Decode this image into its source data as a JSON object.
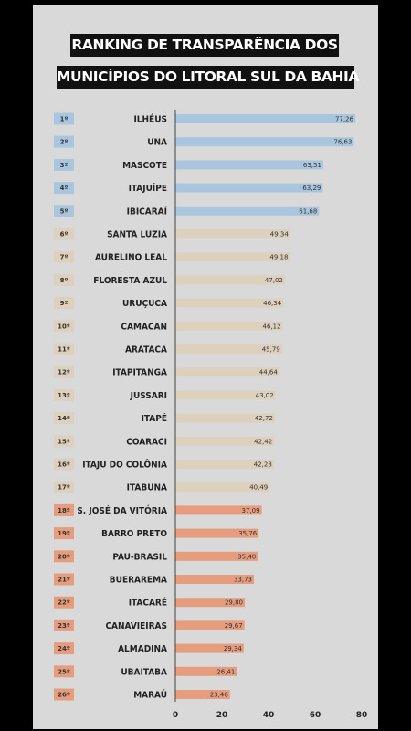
{
  "chart_data": {
    "type": "bar",
    "orientation": "horizontal",
    "title": [
      "RANKING DE TRANSPARÊNCIA DOS",
      "MUNICÍPIOS DO LITORAL SUL DA BAHIA"
    ],
    "xlim": [
      0,
      80
    ],
    "xticks": [
      "0",
      "20",
      "40",
      "60",
      "80"
    ],
    "grid": false,
    "colors": {
      "top": "#a9c6de",
      "middle": "#ddd0bd",
      "bottom": "#e59d7e"
    },
    "rows": [
      {
        "rank": "1º",
        "name": "ILHÉUS",
        "value": 77.26,
        "label": "77,26",
        "tier": "top"
      },
      {
        "rank": "2º",
        "name": "UNA",
        "value": 76.63,
        "label": "76,63",
        "tier": "top"
      },
      {
        "rank": "3º",
        "name": "MASCOTE",
        "value": 63.51,
        "label": "63,51",
        "tier": "top"
      },
      {
        "rank": "4º",
        "name": "ITAJUÍPE",
        "value": 63.29,
        "label": "63,29",
        "tier": "top"
      },
      {
        "rank": "5º",
        "name": "IBICARAÍ",
        "value": 61.68,
        "label": "61,68",
        "tier": "top"
      },
      {
        "rank": "6º",
        "name": "SANTA LUZIA",
        "value": 49.34,
        "label": "49,34",
        "tier": "middle"
      },
      {
        "rank": "7º",
        "name": "AURELINO LEAL",
        "value": 49.18,
        "label": "49,18",
        "tier": "middle"
      },
      {
        "rank": "8º",
        "name": "FLORESTA AZUL",
        "value": 47.02,
        "label": "47,02",
        "tier": "middle"
      },
      {
        "rank": "9º",
        "name": "URUÇUCA",
        "value": 46.34,
        "label": "46,34",
        "tier": "middle"
      },
      {
        "rank": "10º",
        "name": "CAMACAN",
        "value": 46.12,
        "label": "46,12",
        "tier": "middle"
      },
      {
        "rank": "11º",
        "name": "ARATACA",
        "value": 45.79,
        "label": "45,79",
        "tier": "middle"
      },
      {
        "rank": "12º",
        "name": "ITAPITANGA",
        "value": 44.64,
        "label": "44,64",
        "tier": "middle"
      },
      {
        "rank": "13º",
        "name": "JUSSARI",
        "value": 43.02,
        "label": "43,02",
        "tier": "middle"
      },
      {
        "rank": "14º",
        "name": "ITAPÉ",
        "value": 42.72,
        "label": "42,72",
        "tier": "middle"
      },
      {
        "rank": "15º",
        "name": "COARACI",
        "value": 42.42,
        "label": "42,42",
        "tier": "middle"
      },
      {
        "rank": "16º",
        "name": "ITAJU DO COLÔNIA",
        "value": 42.28,
        "label": "42,28",
        "tier": "middle"
      },
      {
        "rank": "17º",
        "name": "ITABUNA",
        "value": 40.49,
        "label": "40,49",
        "tier": "middle"
      },
      {
        "rank": "18º",
        "name": "S. JOSÉ DA VITÓRIA",
        "value": 37.09,
        "label": "37,09",
        "tier": "bottom"
      },
      {
        "rank": "19º",
        "name": "BARRO PRETO",
        "value": 35.76,
        "label": "35,76",
        "tier": "bottom"
      },
      {
        "rank": "20º",
        "name": "PAU-BRASIL",
        "value": 35.4,
        "label": "35,40",
        "tier": "bottom"
      },
      {
        "rank": "21º",
        "name": "BUERAREMA",
        "value": 33.73,
        "label": "33,73",
        "tier": "bottom"
      },
      {
        "rank": "22º",
        "name": "ITACARÉ",
        "value": 29.8,
        "label": "29,80",
        "tier": "bottom"
      },
      {
        "rank": "23º",
        "name": "CANAVIEIRAS",
        "value": 29.67,
        "label": "29,67",
        "tier": "bottom"
      },
      {
        "rank": "24º",
        "name": "ALMADINA",
        "value": 29.34,
        "label": "29,34",
        "tier": "bottom"
      },
      {
        "rank": "25º",
        "name": "UBAITABA",
        "value": 26.41,
        "label": "26,41",
        "tier": "bottom"
      },
      {
        "rank": "26º",
        "name": "MARAÚ",
        "value": 23.46,
        "label": "23,46",
        "tier": "bottom"
      }
    ]
  }
}
